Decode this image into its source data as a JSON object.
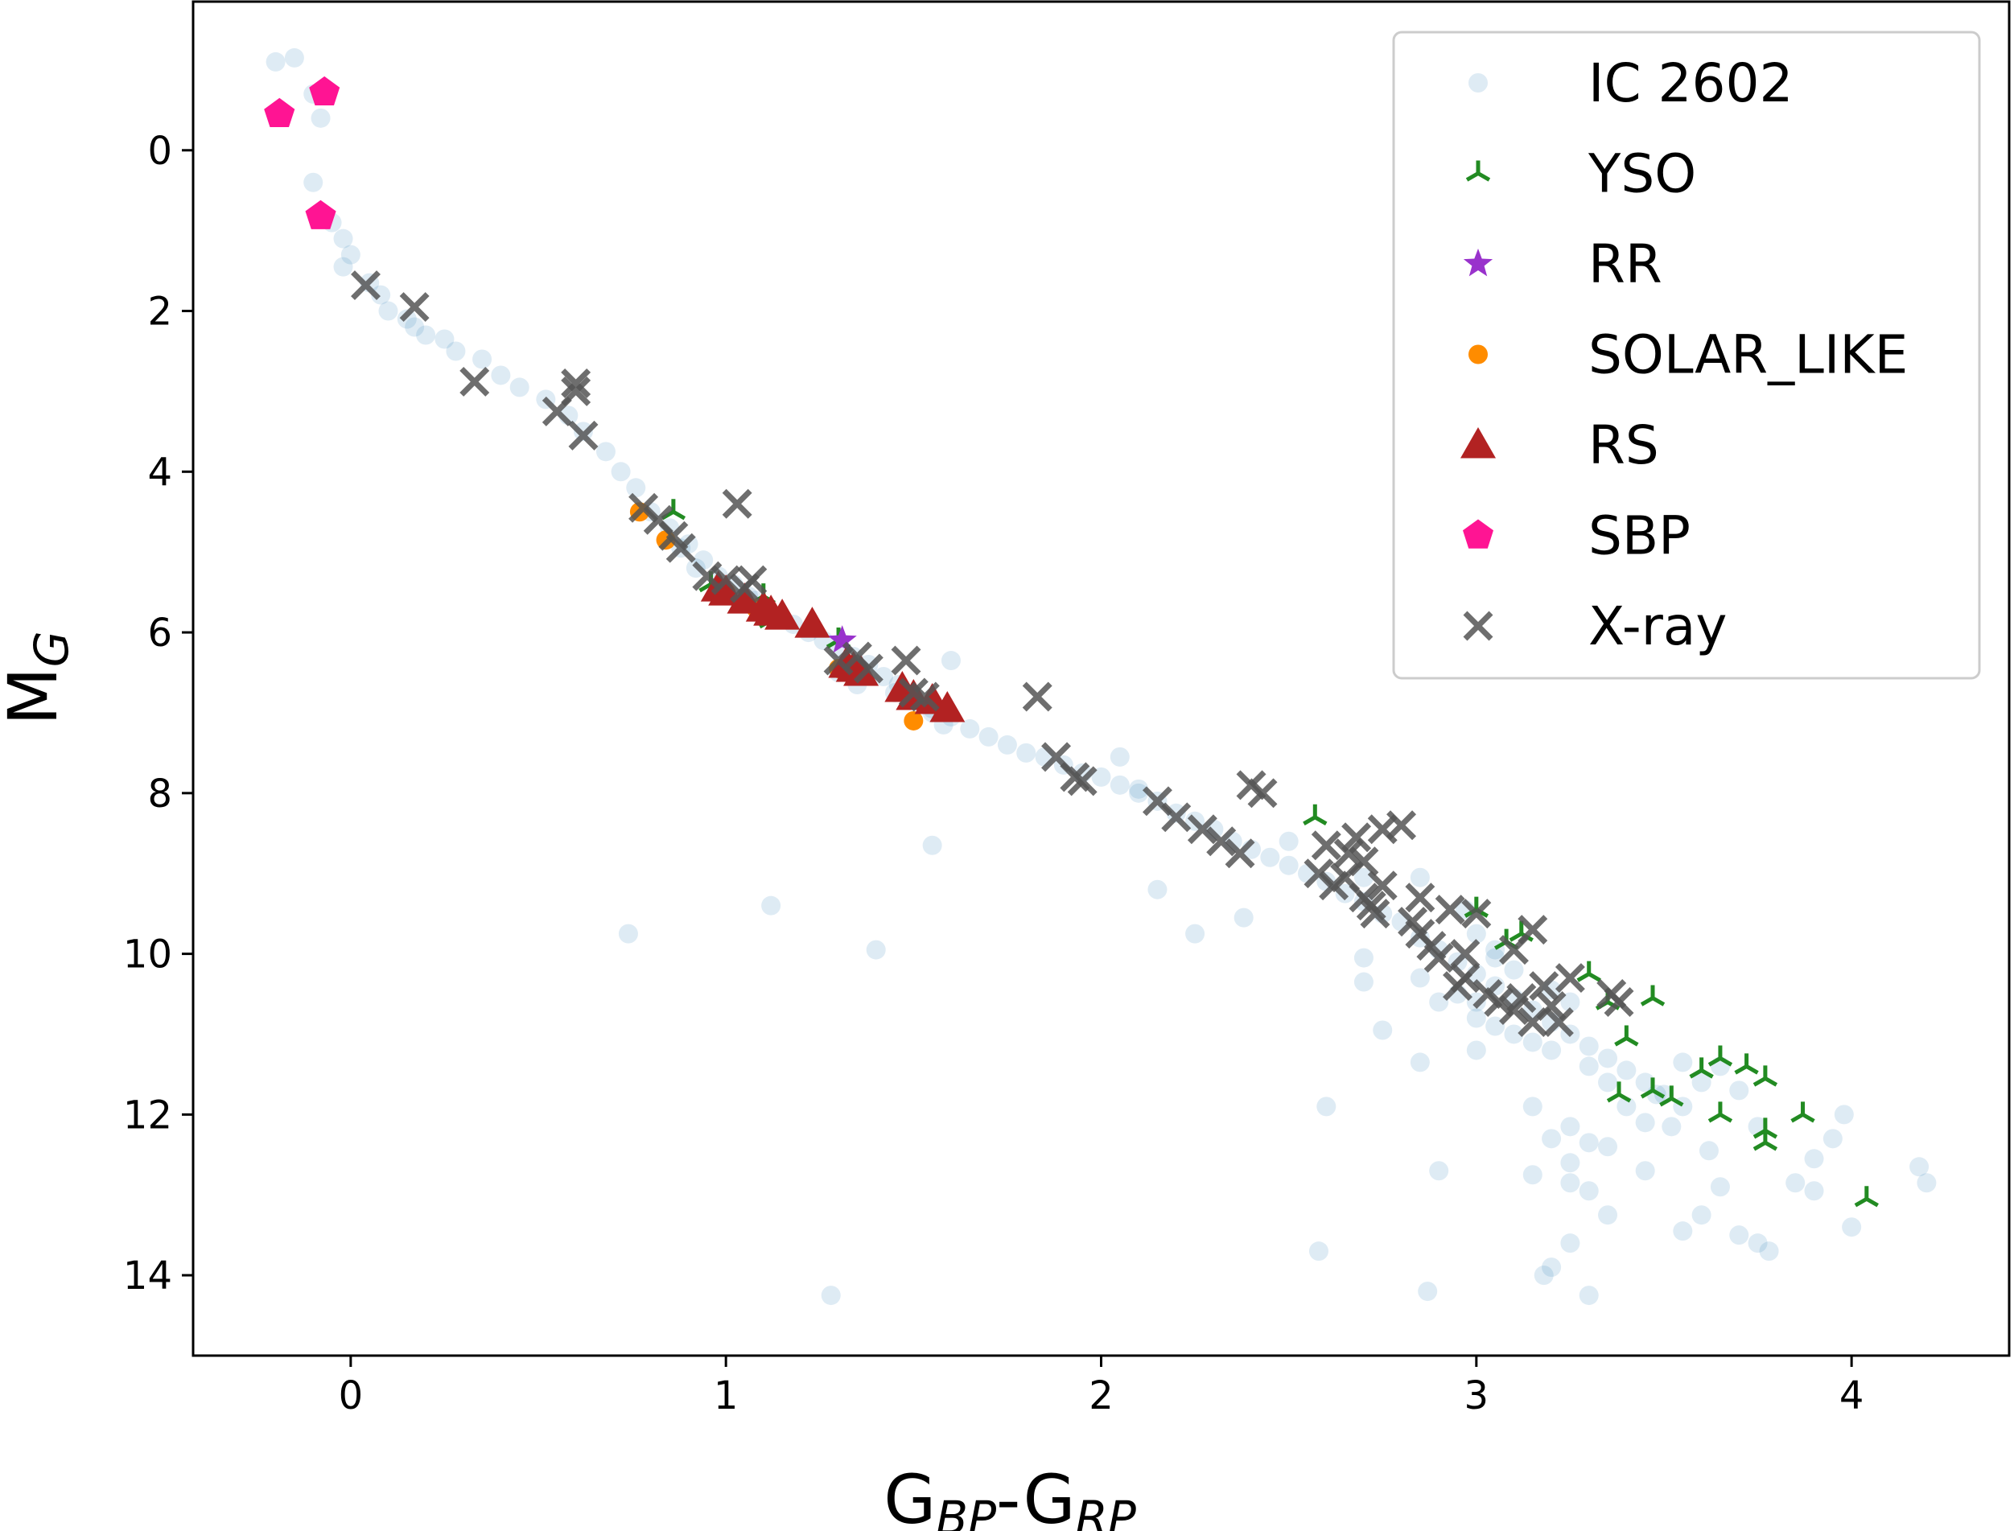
{
  "chart_data": {
    "type": "scatter",
    "title": "",
    "xlabel": {
      "base1": "G",
      "sub1": "BP",
      "sep": "-",
      "base2": "G",
      "sub2": "RP"
    },
    "ylabel": {
      "base": "M",
      "sub": "G"
    },
    "xlim": [
      -0.42,
      4.42
    ],
    "ylim": [
      15.0,
      -1.85
    ],
    "y_inverted": true,
    "x_ticks": [
      "0",
      "1",
      "2",
      "3",
      "4"
    ],
    "y_ticks": [
      "0",
      "2",
      "4",
      "6",
      "8",
      "10",
      "12",
      "14"
    ],
    "grid": false,
    "legend_position": "top-right",
    "series": [
      {
        "name": "IC 2602",
        "marker": "circle",
        "color": "#1f77b4",
        "alpha": 0.15,
        "points": [
          [
            -0.2,
            -1.1
          ],
          [
            -0.15,
            -1.15
          ],
          [
            -0.1,
            -0.7
          ],
          [
            -0.08,
            -0.4
          ],
          [
            -0.1,
            0.4
          ],
          [
            -0.08,
            0.8
          ],
          [
            -0.05,
            0.9
          ],
          [
            -0.02,
            1.1
          ],
          [
            0.0,
            1.3
          ],
          [
            -0.02,
            1.45
          ],
          [
            0.05,
            1.65
          ],
          [
            0.08,
            1.8
          ],
          [
            0.1,
            2.0
          ],
          [
            0.15,
            2.1
          ],
          [
            0.17,
            2.2
          ],
          [
            0.2,
            2.3
          ],
          [
            0.25,
            2.35
          ],
          [
            0.28,
            2.5
          ],
          [
            0.35,
            2.6
          ],
          [
            0.4,
            2.8
          ],
          [
            0.45,
            2.95
          ],
          [
            0.52,
            3.1
          ],
          [
            0.58,
            3.3
          ],
          [
            0.62,
            3.5
          ],
          [
            0.68,
            3.75
          ],
          [
            0.72,
            4.0
          ],
          [
            0.76,
            4.2
          ],
          [
            0.8,
            4.5
          ],
          [
            0.85,
            4.7
          ],
          [
            0.9,
            4.9
          ],
          [
            0.94,
            5.1
          ],
          [
            0.98,
            5.3
          ],
          [
            1.02,
            5.4
          ],
          [
            1.06,
            5.55
          ],
          [
            1.1,
            5.7
          ],
          [
            1.14,
            5.8
          ],
          [
            1.18,
            5.9
          ],
          [
            1.22,
            6.0
          ],
          [
            1.26,
            6.1
          ],
          [
            1.3,
            6.2
          ],
          [
            1.34,
            6.3
          ],
          [
            1.38,
            6.4
          ],
          [
            1.42,
            6.55
          ],
          [
            1.46,
            6.65
          ],
          [
            1.5,
            6.8
          ],
          [
            1.55,
            6.95
          ],
          [
            1.6,
            7.05
          ],
          [
            1.65,
            7.2
          ],
          [
            1.7,
            7.3
          ],
          [
            1.75,
            7.4
          ],
          [
            1.8,
            7.5
          ],
          [
            1.85,
            7.55
          ],
          [
            1.9,
            7.65
          ],
          [
            1.95,
            7.75
          ],
          [
            2.0,
            7.8
          ],
          [
            2.05,
            7.9
          ],
          [
            2.1,
            8.0
          ],
          [
            2.15,
            8.1
          ],
          [
            2.2,
            8.25
          ],
          [
            2.25,
            8.35
          ],
          [
            2.3,
            8.45
          ],
          [
            2.35,
            8.6
          ],
          [
            2.4,
            8.7
          ],
          [
            2.45,
            8.8
          ],
          [
            2.5,
            8.9
          ],
          [
            2.55,
            9.0
          ],
          [
            2.6,
            9.1
          ],
          [
            2.65,
            9.25
          ],
          [
            2.7,
            9.35
          ],
          [
            2.75,
            9.5
          ],
          [
            2.8,
            9.6
          ],
          [
            2.85,
            9.8
          ],
          [
            2.9,
            9.95
          ],
          [
            2.95,
            10.1
          ],
          [
            3.0,
            10.25
          ],
          [
            3.05,
            10.4
          ],
          [
            3.1,
            10.55
          ],
          [
            3.15,
            10.7
          ],
          [
            3.2,
            10.85
          ],
          [
            3.25,
            11.0
          ],
          [
            3.3,
            11.15
          ],
          [
            3.35,
            11.3
          ],
          [
            3.4,
            11.45
          ],
          [
            3.45,
            11.6
          ],
          [
            3.5,
            11.75
          ],
          [
            3.55,
            11.9
          ],
          [
            2.9,
            10.6
          ],
          [
            3.0,
            10.8
          ],
          [
            3.05,
            10.9
          ],
          [
            3.15,
            11.1
          ],
          [
            3.2,
            11.2
          ],
          [
            3.3,
            11.4
          ],
          [
            3.35,
            11.6
          ],
          [
            3.4,
            11.9
          ],
          [
            3.05,
            10.05
          ],
          [
            3.1,
            10.2
          ],
          [
            3.2,
            10.45
          ],
          [
            3.25,
            10.6
          ],
          [
            2.95,
            10.5
          ],
          [
            2.85,
            10.3
          ],
          [
            3.1,
            11.0
          ],
          [
            2.7,
            10.05
          ],
          [
            2.7,
            10.35
          ],
          [
            2.75,
            10.95
          ],
          [
            2.6,
            11.9
          ],
          [
            2.58,
            13.7
          ],
          [
            2.85,
            11.35
          ],
          [
            2.9,
            12.7
          ],
          [
            3.0,
            10.6
          ],
          [
            3.0,
            11.2
          ],
          [
            3.15,
            11.9
          ],
          [
            3.2,
            12.3
          ],
          [
            3.25,
            12.6
          ],
          [
            3.25,
            12.85
          ],
          [
            3.15,
            12.75
          ],
          [
            3.3,
            12.95
          ],
          [
            3.45,
            12.7
          ],
          [
            3.6,
            13.25
          ],
          [
            3.55,
            13.45
          ],
          [
            3.65,
            12.9
          ],
          [
            3.7,
            13.5
          ],
          [
            3.75,
            13.6
          ],
          [
            3.78,
            13.7
          ],
          [
            3.85,
            12.85
          ],
          [
            3.9,
            12.95
          ],
          [
            3.95,
            12.3
          ],
          [
            3.98,
            12.0
          ],
          [
            4.0,
            13.4
          ],
          [
            4.18,
            12.65
          ],
          [
            4.2,
            12.85
          ],
          [
            3.9,
            12.55
          ],
          [
            3.75,
            12.15
          ],
          [
            3.62,
            12.45
          ],
          [
            3.52,
            12.15
          ],
          [
            3.48,
            11.75
          ],
          [
            3.6,
            11.6
          ],
          [
            3.55,
            11.35
          ],
          [
            3.65,
            11.4
          ],
          [
            3.7,
            11.7
          ],
          [
            3.45,
            12.1
          ],
          [
            3.35,
            12.4
          ],
          [
            3.25,
            12.15
          ],
          [
            3.2,
            13.9
          ],
          [
            3.18,
            14.0
          ],
          [
            3.3,
            14.25
          ],
          [
            3.25,
            13.6
          ],
          [
            3.35,
            13.25
          ],
          [
            3.3,
            12.35
          ],
          [
            2.87,
            14.2
          ],
          [
            1.28,
            14.25
          ],
          [
            1.55,
            8.65
          ],
          [
            1.12,
            9.4
          ],
          [
            0.74,
            9.75
          ],
          [
            1.4,
            9.95
          ],
          [
            2.15,
            9.2
          ],
          [
            2.25,
            9.75
          ],
          [
            2.38,
            9.55
          ],
          [
            2.05,
            7.55
          ],
          [
            2.1,
            7.95
          ],
          [
            2.5,
            8.6
          ],
          [
            2.7,
            9.05
          ],
          [
            2.85,
            9.05
          ],
          [
            2.97,
            9.45
          ],
          [
            3.0,
            9.75
          ],
          [
            3.05,
            9.95
          ],
          [
            1.6,
            6.35
          ],
          [
            1.3,
            6.5
          ],
          [
            1.08,
            5.6
          ],
          [
            0.88,
            4.95
          ],
          [
            0.92,
            5.2
          ],
          [
            1.35,
            6.65
          ],
          [
            1.45,
            6.75
          ],
          [
            1.55,
            7.0
          ],
          [
            1.58,
            7.15
          ]
        ]
      },
      {
        "name": "YSO",
        "marker": "tri_down",
        "color": "#228B22",
        "alpha": 1,
        "points": [
          [
            0.86,
            4.5
          ],
          [
            0.96,
            5.4
          ],
          [
            1.1,
            5.55
          ],
          [
            1.12,
            5.85
          ],
          [
            1.3,
            6.1
          ],
          [
            2.57,
            8.3
          ],
          [
            3.0,
            9.45
          ],
          [
            3.08,
            9.85
          ],
          [
            3.12,
            9.75
          ],
          [
            3.3,
            10.25
          ],
          [
            3.35,
            10.6
          ],
          [
            3.47,
            10.55
          ],
          [
            3.4,
            11.05
          ],
          [
            3.38,
            11.75
          ],
          [
            3.47,
            11.7
          ],
          [
            3.52,
            11.8
          ],
          [
            3.6,
            11.45
          ],
          [
            3.65,
            11.3
          ],
          [
            3.72,
            11.4
          ],
          [
            3.77,
            11.55
          ],
          [
            3.65,
            12.0
          ],
          [
            3.77,
            12.2
          ],
          [
            3.77,
            12.35
          ],
          [
            3.87,
            12.0
          ],
          [
            4.04,
            13.05
          ]
        ]
      },
      {
        "name": "RR",
        "marker": "star",
        "color": "#9932CC",
        "alpha": 1,
        "points": [
          [
            1.31,
            6.1
          ]
        ]
      },
      {
        "name": "SOLAR_LIKE",
        "marker": "circle",
        "color": "#FF8C00",
        "alpha": 1,
        "points": [
          [
            0.77,
            4.5
          ],
          [
            0.84,
            4.85
          ],
          [
            1.5,
            7.1
          ],
          [
            1.3,
            6.45
          ],
          [
            1.0,
            5.5
          ],
          [
            1.08,
            5.7
          ]
        ]
      },
      {
        "name": "RS",
        "marker": "triangle",
        "color": "#B22222",
        "alpha": 1,
        "points": [
          [
            0.98,
            5.45
          ],
          [
            1.0,
            5.5
          ],
          [
            1.05,
            5.6
          ],
          [
            1.1,
            5.7
          ],
          [
            1.12,
            5.75
          ],
          [
            1.15,
            5.8
          ],
          [
            1.23,
            5.9
          ],
          [
            1.32,
            6.4
          ],
          [
            1.34,
            6.45
          ],
          [
            1.36,
            6.5
          ],
          [
            1.47,
            6.7
          ],
          [
            1.5,
            6.8
          ],
          [
            1.55,
            6.85
          ],
          [
            1.59,
            6.95
          ]
        ]
      },
      {
        "name": "SBP",
        "marker": "pentagon",
        "color": "#FF1493",
        "alpha": 1,
        "points": [
          [
            -0.19,
            -0.45
          ],
          [
            -0.07,
            -0.72
          ],
          [
            -0.08,
            0.82
          ]
        ]
      },
      {
        "name": "X-ray",
        "marker": "x",
        "color": "#555555",
        "alpha": 0.85,
        "points": [
          [
            0.04,
            1.68
          ],
          [
            0.17,
            1.95
          ],
          [
            0.33,
            2.88
          ],
          [
            0.55,
            3.25
          ],
          [
            0.6,
            3.0
          ],
          [
            0.6,
            2.9
          ],
          [
            0.62,
            3.55
          ],
          [
            0.78,
            4.45
          ],
          [
            0.82,
            4.6
          ],
          [
            0.86,
            4.8
          ],
          [
            0.88,
            4.95
          ],
          [
            1.03,
            4.4
          ],
          [
            0.95,
            5.3
          ],
          [
            1.0,
            5.35
          ],
          [
            1.05,
            5.45
          ],
          [
            1.07,
            5.35
          ],
          [
            1.3,
            6.35
          ],
          [
            1.35,
            6.3
          ],
          [
            1.38,
            6.45
          ],
          [
            1.48,
            6.35
          ],
          [
            1.5,
            6.75
          ],
          [
            1.53,
            6.8
          ],
          [
            1.83,
            6.8
          ],
          [
            1.88,
            7.55
          ],
          [
            1.93,
            7.8
          ],
          [
            1.95,
            7.85
          ],
          [
            2.15,
            8.1
          ],
          [
            2.2,
            8.3
          ],
          [
            2.27,
            8.45
          ],
          [
            2.32,
            8.6
          ],
          [
            2.37,
            8.75
          ],
          [
            2.4,
            7.9
          ],
          [
            2.43,
            8.0
          ],
          [
            2.58,
            9.0
          ],
          [
            2.62,
            9.15
          ],
          [
            2.65,
            9.05
          ],
          [
            2.66,
            8.75
          ],
          [
            2.68,
            8.55
          ],
          [
            2.7,
            9.3
          ],
          [
            2.72,
            9.4
          ],
          [
            2.73,
            9.5
          ],
          [
            2.75,
            8.45
          ],
          [
            2.8,
            8.4
          ],
          [
            2.83,
            9.6
          ],
          [
            2.85,
            9.75
          ],
          [
            2.88,
            9.9
          ],
          [
            2.9,
            10.05
          ],
          [
            2.93,
            9.45
          ],
          [
            2.97,
            10.3
          ],
          [
            3.0,
            9.5
          ],
          [
            3.03,
            10.5
          ],
          [
            3.06,
            10.6
          ],
          [
            3.1,
            10.7
          ],
          [
            3.12,
            10.55
          ],
          [
            3.15,
            9.7
          ],
          [
            3.15,
            10.85
          ],
          [
            3.18,
            10.4
          ],
          [
            3.2,
            10.65
          ],
          [
            3.22,
            10.85
          ],
          [
            3.25,
            10.3
          ],
          [
            3.36,
            10.5
          ],
          [
            3.38,
            10.6
          ],
          [
            3.1,
            9.95
          ],
          [
            2.97,
            10.0
          ],
          [
            2.95,
            10.4
          ],
          [
            2.6,
            8.65
          ],
          [
            2.7,
            8.85
          ],
          [
            2.75,
            9.15
          ],
          [
            2.85,
            9.3
          ]
        ]
      }
    ]
  }
}
